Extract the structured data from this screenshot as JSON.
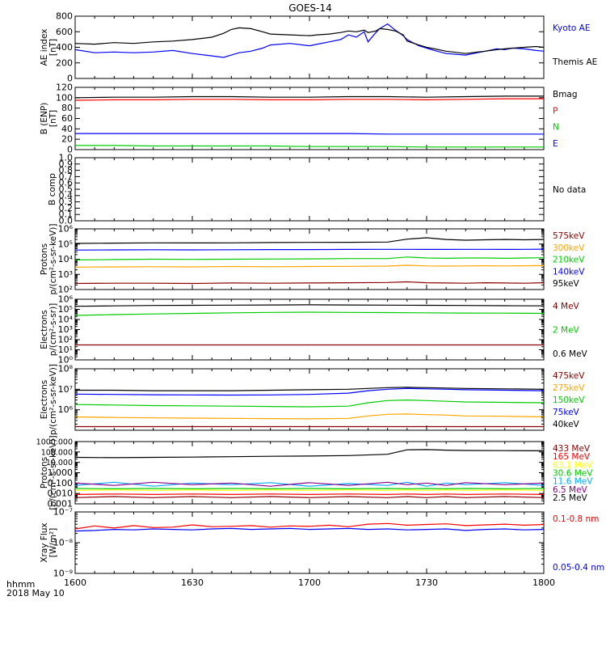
{
  "title": "GOES-14",
  "footer": {
    "line1": "hhmm",
    "line2": "2018 May 10"
  },
  "x_axis": {
    "ticks": [
      "1600",
      "1630",
      "1700",
      "1730",
      "1800"
    ],
    "range_minutes": [
      0,
      120
    ]
  },
  "chart_data": [
    {
      "id": "ae",
      "type": "line",
      "scale": "linear",
      "ylabel": [
        "AE index",
        "[nT]"
      ],
      "ylim": [
        0,
        800
      ],
      "ticks": [
        {
          "v": 0,
          "l": "0"
        },
        {
          "v": 200,
          "l": "200"
        },
        {
          "v": 400,
          "l": "400"
        },
        {
          "v": 600,
          "l": "600"
        },
        {
          "v": 800,
          "l": "800"
        }
      ],
      "x": [
        0,
        5,
        10,
        15,
        20,
        25,
        30,
        35,
        38,
        40,
        42,
        45,
        48,
        50,
        55,
        60,
        62,
        65,
        68,
        70,
        72,
        74,
        75,
        77,
        78,
        80,
        82,
        84,
        85,
        88,
        90,
        92,
        95,
        100,
        103,
        105,
        108,
        110,
        112,
        115,
        118,
        120
      ],
      "series": [
        {
          "name": "Kyoto AE",
          "color": "#0000ff",
          "values": [
            370,
            330,
            340,
            330,
            340,
            360,
            320,
            290,
            270,
            300,
            330,
            350,
            390,
            430,
            450,
            420,
            440,
            470,
            500,
            560,
            530,
            600,
            470,
            590,
            640,
            700,
            620,
            550,
            500,
            420,
            390,
            360,
            320,
            300,
            330,
            350,
            380,
            370,
            390,
            380,
            360,
            350
          ]
        },
        {
          "name": "Themis AE",
          "color": "#000000",
          "values": [
            450,
            440,
            460,
            450,
            470,
            480,
            500,
            530,
            580,
            630,
            650,
            640,
            600,
            570,
            560,
            550,
            560,
            570,
            590,
            610,
            600,
            620,
            590,
            610,
            640,
            630,
            610,
            560,
            480,
            430,
            400,
            380,
            350,
            320,
            340,
            350,
            370,
            380,
            390,
            400,
            410,
            400
          ]
        }
      ]
    },
    {
      "id": "b",
      "type": "line",
      "scale": "linear",
      "ylabel": [
        "B (ENP)",
        "[nT]"
      ],
      "ylim": [
        0,
        120
      ],
      "ticks": [
        {
          "v": 0,
          "l": "0"
        },
        {
          "v": 20,
          "l": "20"
        },
        {
          "v": 40,
          "l": "40"
        },
        {
          "v": 60,
          "l": "60"
        },
        {
          "v": 80,
          "l": "80"
        },
        {
          "v": 100,
          "l": "100"
        },
        {
          "v": 120,
          "l": "120"
        }
      ],
      "x": [
        0,
        10,
        20,
        30,
        40,
        50,
        60,
        70,
        80,
        90,
        100,
        110,
        120
      ],
      "series": [
        {
          "name": "Bmag",
          "color": "#000000",
          "values": [
            100,
            101,
            101,
            102,
            102,
            101,
            101,
            102,
            102,
            101,
            102,
            103,
            103
          ]
        },
        {
          "name": "P",
          "color": "#ff0000",
          "values": [
            95,
            96,
            96,
            97,
            97,
            96,
            96,
            97,
            97,
            96,
            97,
            98,
            98
          ]
        },
        {
          "name": "N",
          "color": "#00cc00",
          "values": [
            8,
            8,
            7,
            7,
            7,
            7,
            6,
            6,
            6,
            5,
            5,
            5,
            5
          ]
        },
        {
          "name": "E",
          "color": "#0000ff",
          "values": [
            31,
            31,
            31,
            31,
            31,
            31,
            31,
            31,
            30,
            30,
            30,
            30,
            30
          ]
        }
      ]
    },
    {
      "id": "bcomp",
      "type": "line",
      "scale": "linear",
      "ylabel": [
        "B comp"
      ],
      "ylim": [
        0,
        1
      ],
      "ticks": [
        {
          "v": 0,
          "l": "0.0"
        },
        {
          "v": 0.1,
          "l": "0.1"
        },
        {
          "v": 0.2,
          "l": "0.2"
        },
        {
          "v": 0.3,
          "l": "0.3"
        },
        {
          "v": 0.4,
          "l": "0.4"
        },
        {
          "v": 0.5,
          "l": "0.5"
        },
        {
          "v": 0.6,
          "l": "0.6"
        },
        {
          "v": 0.7,
          "l": "0.7"
        },
        {
          "v": 0.8,
          "l": "0.8"
        },
        {
          "v": 0.9,
          "l": "0.9"
        },
        {
          "v": 1,
          "l": "1.0"
        }
      ],
      "x": [],
      "series": [],
      "note": "No data"
    },
    {
      "id": "protons_hi",
      "type": "line",
      "scale": "log",
      "ylabel": [
        "Protons",
        "p/(cm²-s-sr-keV)]"
      ],
      "ylim": [
        100,
        1000000
      ],
      "ticks": [
        {
          "v": 100,
          "l": "10²"
        },
        {
          "v": 1000,
          "l": "10³"
        },
        {
          "v": 10000,
          "l": "10⁴"
        },
        {
          "v": 100000,
          "l": "10⁵"
        },
        {
          "v": 1000000,
          "l": "10⁶"
        }
      ],
      "x": [
        0,
        10,
        20,
        30,
        40,
        50,
        60,
        70,
        80,
        85,
        90,
        95,
        100,
        105,
        110,
        115,
        120
      ],
      "series": [
        {
          "name": "575keV",
          "color": "#8b0000",
          "values": [
            250,
            260,
            260,
            250,
            270,
            260,
            270,
            280,
            290,
            320,
            280,
            270,
            260,
            280,
            270,
            260,
            280
          ]
        },
        {
          "name": "300keV",
          "color": "#ffa500",
          "values": [
            3000,
            3100,
            3200,
            3100,
            3300,
            3200,
            3300,
            3400,
            3500,
            4000,
            3600,
            3500,
            3600,
            3700,
            3600,
            3700,
            3800
          ]
        },
        {
          "name": "210keV",
          "color": "#00cc00",
          "values": [
            9000,
            9500,
            10000,
            9800,
            10000,
            10200,
            10500,
            11000,
            11000,
            14000,
            12000,
            11500,
            12000,
            12000,
            11500,
            12000,
            12500
          ]
        },
        {
          "name": "140keV",
          "color": "#0000ff",
          "values": [
            40000,
            41000,
            42000,
            41000,
            42000,
            43000,
            43000,
            44000,
            45000,
            45000,
            44000,
            44000,
            45000,
            45000,
            44000,
            45000,
            46000
          ]
        },
        {
          "name": "95keV",
          "color": "#000000",
          "values": [
            110000,
            115000,
            120000,
            118000,
            120000,
            125000,
            128000,
            130000,
            135000,
            210000,
            260000,
            200000,
            180000,
            190000,
            200000,
            190000,
            200000
          ]
        }
      ]
    },
    {
      "id": "electrons_hi",
      "type": "line",
      "scale": "log",
      "ylabel": [
        "Electrons",
        "p/(cm²-s-sr)]"
      ],
      "ylim": [
        1,
        1000000
      ],
      "ticks": [
        {
          "v": 1,
          "l": "10⁰"
        },
        {
          "v": 10,
          "l": "10¹"
        },
        {
          "v": 100,
          "l": "10²"
        },
        {
          "v": 1000,
          "l": "10³"
        },
        {
          "v": 10000,
          "l": "10⁴"
        },
        {
          "v": 100000,
          "l": "10⁵"
        },
        {
          "v": 1000000,
          "l": "10⁶"
        }
      ],
      "x": [
        0,
        10,
        20,
        30,
        40,
        50,
        60,
        70,
        80,
        90,
        100,
        110,
        120
      ],
      "series": [
        {
          "name": "4 MeV",
          "color": "#8b0000",
          "values": [
            30,
            30,
            30,
            30,
            30,
            30,
            30,
            30,
            30,
            30,
            30,
            30,
            30
          ]
        },
        {
          "name": "2 MeV",
          "color": "#00cc00",
          "values": [
            25000,
            30000,
            35000,
            40000,
            45000,
            50000,
            52000,
            50000,
            48000,
            45000,
            43000,
            42000,
            40000
          ]
        },
        {
          "name": "0.6 MeV",
          "color": "#000000",
          "values": [
            200000,
            220000,
            240000,
            250000,
            260000,
            270000,
            280000,
            270000,
            260000,
            250000,
            240000,
            230000,
            220000
          ]
        }
      ]
    },
    {
      "id": "electrons_lo",
      "type": "line",
      "scale": "log",
      "ylabel": [
        "Electrons",
        "p/(cm²-s-sr-keV)]"
      ],
      "ylim": [
        100000,
        100000000
      ],
      "ticks": [
        {
          "v": 1000000,
          "l": "10⁶"
        },
        {
          "v": 10000000,
          "l": "10⁷"
        },
        {
          "v": 100000000,
          "l": "10⁸"
        }
      ],
      "x": [
        0,
        10,
        20,
        30,
        40,
        50,
        60,
        70,
        75,
        80,
        85,
        90,
        95,
        100,
        110,
        120
      ],
      "series": [
        {
          "name": "475keV",
          "color": "#8b0000",
          "values": [
            150000,
            150000,
            150000,
            150000,
            150000,
            150000,
            150000,
            150000,
            150000,
            150000,
            150000,
            150000,
            150000,
            150000,
            150000,
            150000
          ]
        },
        {
          "name": "275keV",
          "color": "#ffa500",
          "values": [
            450000,
            420000,
            400000,
            390000,
            380000,
            370000,
            360000,
            380000,
            500000,
            600000,
            620000,
            580000,
            550000,
            500000,
            480000,
            450000
          ]
        },
        {
          "name": "150keV",
          "color": "#00cc00",
          "values": [
            1800000,
            1700000,
            1600000,
            1550000,
            1500000,
            1450000,
            1400000,
            1500000,
            2200000,
            2800000,
            3000000,
            2800000,
            2600000,
            2400000,
            2300000,
            2200000
          ]
        },
        {
          "name": "75keV",
          "color": "#0000ff",
          "values": [
            5800000,
            5600000,
            5400000,
            5300000,
            5200000,
            5300000,
            5600000,
            6500000,
            8500000,
            10000000,
            11000000,
            10500000,
            10000000,
            9500000,
            9000000,
            8500000
          ]
        },
        {
          "name": "40keV",
          "color": "#000000",
          "values": [
            9000000,
            9000000,
            8500000,
            8500000,
            8500000,
            9000000,
            9500000,
            10000000,
            11000000,
            12000000,
            12500000,
            12000000,
            11500000,
            11000000,
            10500000,
            10000000
          ]
        }
      ]
    },
    {
      "id": "protons_mev",
      "type": "line",
      "scale": "log",
      "ylabel": [
        "Protons",
        "[p/(cm²-s-sr-keV)]"
      ],
      "ylim": [
        0.001,
        1000
      ],
      "ticks": [
        {
          "v": 0.001,
          "l": "0.001"
        },
        {
          "v": 0.01,
          "l": "0.010"
        },
        {
          "v": 0.1,
          "l": "0.100"
        },
        {
          "v": 1,
          "l": "1.000"
        },
        {
          "v": 10,
          "l": "10.000"
        },
        {
          "v": 100,
          "l": "100.000"
        },
        {
          "v": 1000,
          "l": "1000.000"
        }
      ],
      "x": [
        0,
        10,
        20,
        30,
        40,
        50,
        60,
        70,
        80,
        85,
        90,
        95,
        100,
        110,
        120
      ],
      "series": [
        {
          "name": "433 MeV",
          "color": "#8b0000",
          "values": [
            0.004,
            0.005,
            0.004,
            0.005,
            0.004,
            0.005,
            0.004,
            0.005,
            0.004,
            0.005,
            0.004,
            0.005,
            0.004,
            0.005,
            0.004
          ]
        },
        {
          "name": "165 MeV",
          "color": "#ff0000",
          "values": [
            0.008,
            0.009,
            0.008,
            0.009,
            0.008,
            0.009,
            0.008,
            0.009,
            0.008,
            0.009,
            0.008,
            0.009,
            0.008,
            0.009,
            0.008
          ]
        },
        {
          "name": "63.1 MeV",
          "color": "#ffff00",
          "values": [
            0.02,
            0.022,
            0.02,
            0.022,
            0.02,
            0.022,
            0.02,
            0.022,
            0.02,
            0.022,
            0.02,
            0.022,
            0.02,
            0.022,
            0.02
          ]
        },
        {
          "name": "30.6 MeV",
          "color": "#00cc00",
          "values": [
            0.03,
            0.028,
            0.03,
            0.028,
            0.03,
            0.028,
            0.03,
            0.028,
            0.03,
            0.028,
            0.03,
            0.028,
            0.03,
            0.028,
            0.03
          ]
        },
        {
          "name": "11.6 MeV",
          "color": "#00aaff",
          "values": [
            0.06,
            0.12,
            0.05,
            0.1,
            0.07,
            0.11,
            0.05,
            0.09,
            0.06,
            0.12,
            0.05,
            0.1,
            0.07,
            0.11,
            0.06
          ]
        },
        {
          "name": "6.5 MeV",
          "color": "#8b008b",
          "values": [
            0.1,
            0.06,
            0.12,
            0.07,
            0.1,
            0.05,
            0.11,
            0.06,
            0.12,
            0.07,
            0.1,
            0.06,
            0.11,
            0.07,
            0.1
          ]
        },
        {
          "name": "2.5 MeV",
          "color": "#000000",
          "values": [
            30,
            28,
            30,
            32,
            35,
            38,
            40,
            45,
            60,
            160,
            170,
            150,
            140,
            135,
            130
          ]
        }
      ]
    },
    {
      "id": "xray",
      "type": "line",
      "scale": "log",
      "ylabel": [
        "Xray Flux",
        "[W/m²]"
      ],
      "ylim": [
        1e-09,
        1e-07
      ],
      "ticks": [
        {
          "v": 1e-09,
          "l": "10⁻⁹"
        },
        {
          "v": 1e-08,
          "l": "10⁻⁸"
        },
        {
          "v": 1e-07,
          "l": "10⁻⁷"
        }
      ],
      "x": [
        0,
        5,
        10,
        15,
        20,
        25,
        30,
        35,
        40,
        45,
        50,
        55,
        60,
        65,
        70,
        75,
        80,
        85,
        90,
        95,
        100,
        105,
        110,
        115,
        120
      ],
      "series": [
        {
          "name": "0.1-0.8 nm",
          "color": "#ff0000",
          "values": [
            2.8e-08,
            3.5e-08,
            3e-08,
            3.6e-08,
            3.1e-08,
            3.2e-08,
            3.8e-08,
            3.3e-08,
            3.4e-08,
            3.6e-08,
            3.2e-08,
            3.5e-08,
            3.4e-08,
            3.7e-08,
            3.3e-08,
            4e-08,
            4.2e-08,
            3.7e-08,
            3.9e-08,
            4.1e-08,
            3.6e-08,
            3.8e-08,
            4e-08,
            3.7e-08,
            3.9e-08
          ]
        },
        {
          "name": "0.05-0.4 nm",
          "color": "#0000ff",
          "values": [
            2.4e-08,
            2.5e-08,
            2.7e-08,
            2.6e-08,
            2.8e-08,
            2.7e-08,
            2.6e-08,
            2.8e-08,
            2.9e-08,
            2.7e-08,
            2.8e-08,
            2.9e-08,
            2.7e-08,
            2.8e-08,
            2.9e-08,
            2.7e-08,
            2.8e-08,
            2.6e-08,
            2.7e-08,
            2.8e-08,
            2.5e-08,
            2.7e-08,
            2.8e-08,
            2.6e-08,
            2.7e-08
          ]
        }
      ]
    }
  ]
}
